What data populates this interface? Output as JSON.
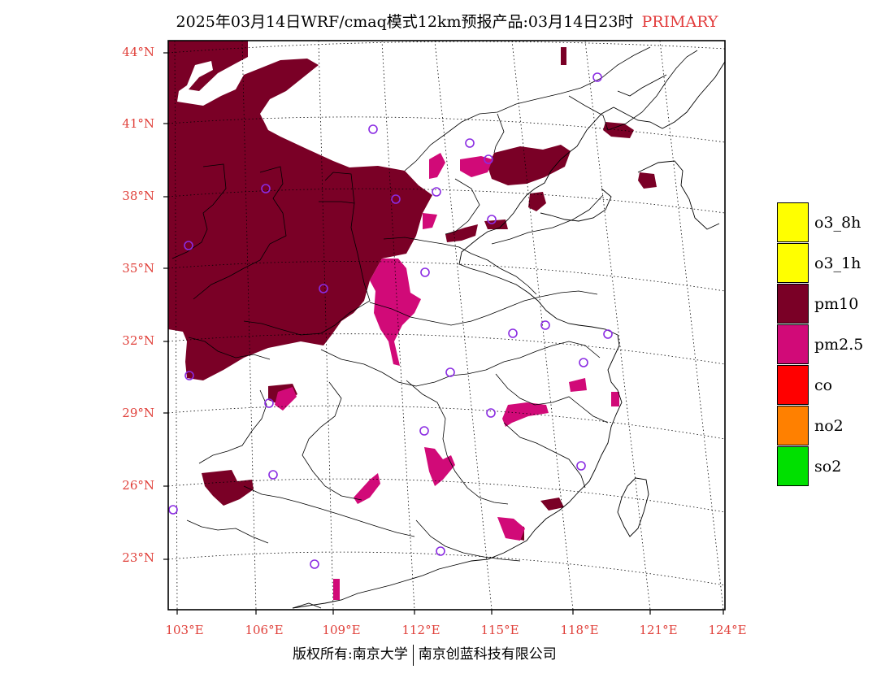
{
  "title": {
    "main": "2025年03月14日WRF/cmaq模式12km预报产品:03月14日23时",
    "tag": "PRIMARY"
  },
  "axes": {
    "lat_labels": [
      "44°N",
      "41°N",
      "38°N",
      "35°N",
      "32°N",
      "29°N",
      "26°N",
      "23°N"
    ],
    "lon_labels": [
      "103°E",
      "106°E",
      "109°E",
      "112°E",
      "115°E",
      "118°E",
      "121°E",
      "124°E"
    ]
  },
  "legend": [
    {
      "label": "o3_8h",
      "color": "#ffff00"
    },
    {
      "label": "o3_1h",
      "color": "#ffff00"
    },
    {
      "label": "pm10",
      "color": "#7a0026"
    },
    {
      "label": "pm2.5",
      "color": "#d10a78"
    },
    {
      "label": "co",
      "color": "#ff0000"
    },
    {
      "label": "no2",
      "color": "#ff8000"
    },
    {
      "label": "so2",
      "color": "#00e000"
    }
  ],
  "footer": {
    "left": "版权所有:南京大学",
    "right": "南京创蓝科技有限公司"
  },
  "colors": {
    "pm10": "#7a0026",
    "pm25": "#d10a78",
    "station": "#8a2be2",
    "axis_label": "#e0403a"
  },
  "stations": [
    "station-beijing",
    "station-tianjin",
    "station-shijiazhuang",
    "station-jinan",
    "station-taiyuan",
    "station-zhengzhou",
    "station-xian",
    "station-lanzhou",
    "station-yinchuan",
    "station-hohhot",
    "station-shenyang",
    "station-hefei",
    "station-nanjing",
    "station-shanghai",
    "station-hangzhou",
    "station-wuhan",
    "station-changsha",
    "station-nanchang",
    "station-fuzhou",
    "station-chongqing",
    "station-chengdu",
    "station-guiyang",
    "station-kunming",
    "station-nanning",
    "station-guangzhou"
  ]
}
